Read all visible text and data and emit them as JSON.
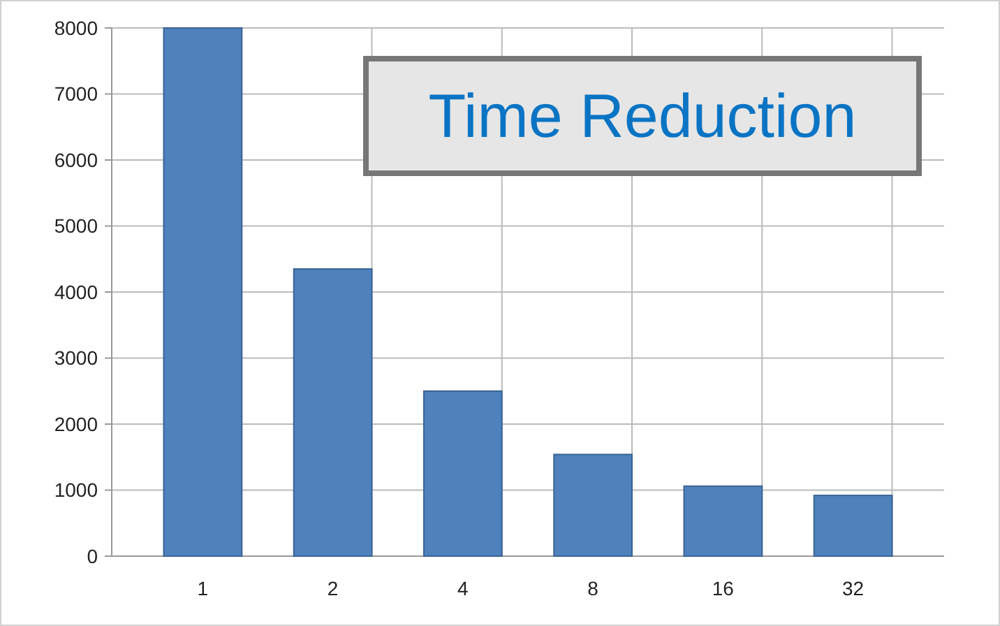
{
  "chart_data": {
    "type": "bar",
    "title": "Time Reduction",
    "categories": [
      "1",
      "2",
      "4",
      "8",
      "16",
      "32"
    ],
    "values": [
      8000,
      4350,
      2500,
      1540,
      1060,
      920
    ],
    "color": "#4f81bd",
    "ylim": [
      0,
      8000
    ],
    "yticks": [
      0,
      1000,
      2000,
      3000,
      4000,
      5000,
      6000,
      7000,
      8000
    ],
    "grid": true
  }
}
